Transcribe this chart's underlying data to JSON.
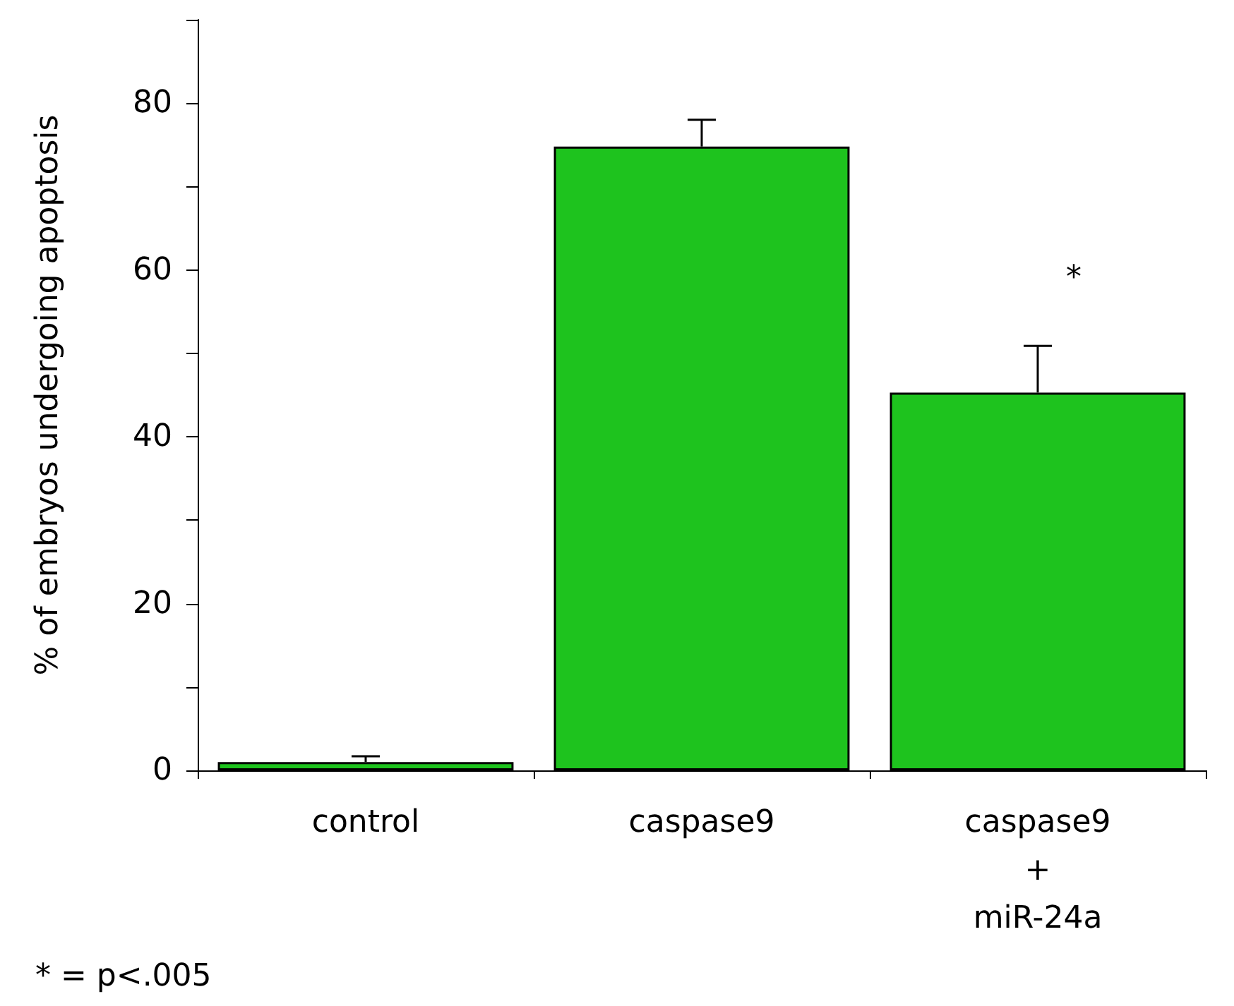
{
  "chart_data": {
    "type": "bar",
    "ylabel": "% of embryos undergoing apoptosis",
    "categories": [
      "control",
      "caspase9",
      "caspase9\n+\nmiR-24a"
    ],
    "values": [
      1.0,
      74.8,
      45.3
    ],
    "errors": [
      [
        1.0,
        1.7
      ],
      [
        74.8,
        78.0
      ],
      [
        45.3,
        50.9
      ]
    ],
    "color": "#1ec31e",
    "ylim": [
      0,
      90
    ],
    "yticks": [
      0,
      {
        "value": 10,
        "label": null
      },
      20,
      {
        "value": 30,
        "label": null
      },
      40,
      {
        "value": 50,
        "label": null
      },
      60,
      {
        "value": 70,
        "label": null
      },
      80,
      {
        "value": 90,
        "label": null
      }
    ],
    "grid": false,
    "annotations": [
      "*",
      "* = p<.005"
    ]
  }
}
